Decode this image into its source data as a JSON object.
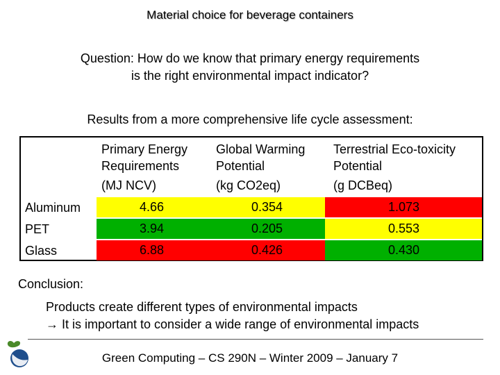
{
  "title": "Material choice for beverage containers",
  "question": {
    "line1": "Question: How do we know that primary energy requirements",
    "line2": "is the right environmental impact indicator?"
  },
  "results_heading": "Results from a more comprehensive life cycle assessment:",
  "table": {
    "columns": [
      {
        "line1": "Primary Energy",
        "line2": "Requirements",
        "line3": "(MJ NCV)"
      },
      {
        "line1": "Global Warming",
        "line2": "Potential",
        "line3": "(kg CO2eq)"
      },
      {
        "line1": "Terrestrial Eco-toxicity",
        "line2": "Potential",
        "line3": "(g DCBeq)"
      }
    ],
    "rows": [
      {
        "label": "Aluminum",
        "cells": [
          "4.66",
          "0.354",
          "1.073"
        ],
        "colors": [
          "#ffff00",
          "#ffff00",
          "#ff0000"
        ]
      },
      {
        "label": "PET",
        "cells": [
          "3.94",
          "0.205",
          "0.553"
        ],
        "colors": [
          "#00b000",
          "#00b000",
          "#ffff00"
        ]
      },
      {
        "label": "Glass",
        "cells": [
          "6.88",
          "0.426",
          "0.430"
        ],
        "colors": [
          "#ff0000",
          "#ff0000",
          "#00b000"
        ]
      }
    ]
  },
  "conclusion_label": "Conclusion:",
  "conclusion": {
    "line1": "Products create different types of environmental impacts",
    "line2": "→ It is important to consider a wide range of environmental impacts"
  },
  "footer": "Green Computing – CS 290N – Winter 2009 – January 7",
  "colors": {
    "logo_blue": "#1f4e8c",
    "logo_green": "#4a8a2a"
  }
}
